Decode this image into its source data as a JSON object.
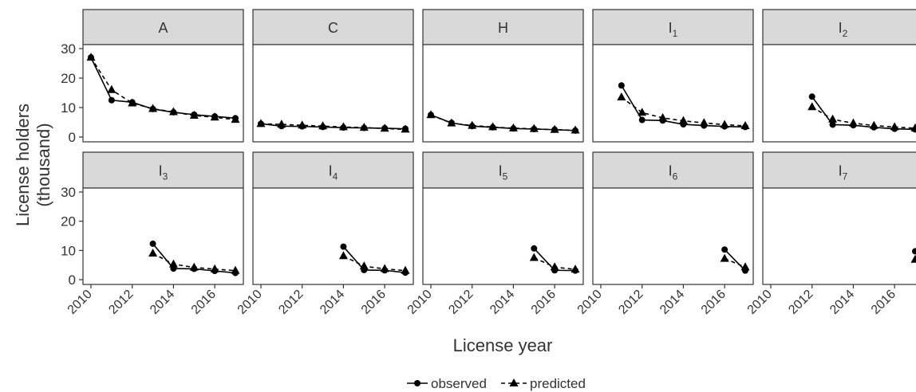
{
  "chart_data": {
    "type": "line",
    "facets": [
      "A",
      "C",
      "H",
      "I1",
      "I2",
      "I3",
      "I4",
      "I5",
      "I6",
      "I7"
    ],
    "facet_labels": [
      {
        "base": "A",
        "sub": ""
      },
      {
        "base": "C",
        "sub": ""
      },
      {
        "base": "H",
        "sub": ""
      },
      {
        "base": "I",
        "sub": "1"
      },
      {
        "base": "I",
        "sub": "2"
      },
      {
        "base": "I",
        "sub": "3"
      },
      {
        "base": "I",
        "sub": "4"
      },
      {
        "base": "I",
        "sub": "5"
      },
      {
        "base": "I",
        "sub": "6"
      },
      {
        "base": "I",
        "sub": "7"
      }
    ],
    "xlabel": "License year",
    "ylabel_lines": [
      "License holders",
      "(thousand)"
    ],
    "xlim": [
      2010,
      2017
    ],
    "ylim": [
      0,
      30
    ],
    "x_ticks": [
      "2010",
      "2012",
      "2014",
      "2016"
    ],
    "y_ticks": [
      "0",
      "10",
      "20",
      "30"
    ],
    "grid": false,
    "legend": {
      "position": "bottom",
      "entries": [
        "observed",
        "predicted"
      ]
    },
    "series": [
      {
        "name": "observed",
        "panels": [
          {
            "x": [
              2010,
              2011,
              2012,
              2013,
              2014,
              2015,
              2016,
              2017
            ],
            "y": [
              27.0,
              12.5,
              11.8,
              9.5,
              8.4,
              7.6,
              7.0,
              6.4
            ]
          },
          {
            "x": [
              2010,
              2011,
              2012,
              2013,
              2014,
              2015,
              2016,
              2017
            ],
            "y": [
              4.5,
              3.7,
              3.6,
              3.4,
              3.2,
              3.1,
              3.0,
              2.8
            ]
          },
          {
            "x": [
              2010,
              2011,
              2012,
              2013,
              2014,
              2015,
              2016,
              2017
            ],
            "y": [
              7.5,
              4.8,
              3.7,
              3.3,
              2.9,
              2.7,
              2.5,
              2.2
            ]
          },
          {
            "x": [
              2011,
              2012,
              2013,
              2014,
              2015,
              2016,
              2017
            ],
            "y": [
              17.5,
              5.8,
              5.6,
              4.3,
              3.9,
              3.6,
              3.4
            ]
          },
          {
            "x": [
              2012,
              2013,
              2014,
              2015,
              2016,
              2017
            ],
            "y": [
              13.7,
              4.2,
              4.0,
              3.3,
              2.8,
              2.6
            ]
          },
          {
            "x": [
              2013,
              2014,
              2015,
              2016,
              2017
            ],
            "y": [
              12.3,
              3.8,
              3.7,
              3.0,
              2.3
            ]
          },
          {
            "x": [
              2014,
              2015,
              2016,
              2017
            ],
            "y": [
              11.3,
              3.3,
              3.2,
              2.4
            ]
          },
          {
            "x": [
              2015,
              2016,
              2017
            ],
            "y": [
              10.7,
              3.2,
              3.1
            ]
          },
          {
            "x": [
              2016,
              2017
            ],
            "y": [
              10.3,
              3.1
            ]
          },
          {
            "x": [
              2017
            ],
            "y": [
              9.7
            ]
          }
        ]
      },
      {
        "name": "predicted",
        "panels": [
          {
            "x": [
              2010,
              2011,
              2012,
              2013,
              2014,
              2015,
              2016,
              2017
            ],
            "y": [
              27.0,
              16.0,
              11.5,
              9.6,
              8.5,
              7.3,
              6.7,
              5.9
            ]
          },
          {
            "x": [
              2010,
              2011,
              2012,
              2013,
              2014,
              2015,
              2016,
              2017
            ],
            "y": [
              4.5,
              4.3,
              4.0,
              3.7,
              3.4,
              3.2,
              2.9,
              2.6
            ]
          },
          {
            "x": [
              2010,
              2011,
              2012,
              2013,
              2014,
              2015,
              2016,
              2017
            ],
            "y": [
              7.5,
              4.7,
              3.9,
              3.4,
              3.0,
              2.8,
              2.5,
              2.3
            ]
          },
          {
            "x": [
              2011,
              2012,
              2013,
              2014,
              2015,
              2016,
              2017
            ],
            "y": [
              13.5,
              8.3,
              6.5,
              5.5,
              4.8,
              4.2,
              3.8
            ]
          },
          {
            "x": [
              2012,
              2013,
              2014,
              2015,
              2016,
              2017
            ],
            "y": [
              10.2,
              6.0,
              4.7,
              3.9,
              3.4,
              3.0
            ]
          },
          {
            "x": [
              2013,
              2014,
              2015,
              2016,
              2017
            ],
            "y": [
              9.0,
              5.3,
              4.2,
              3.6,
              3.1
            ]
          },
          {
            "x": [
              2014,
              2015,
              2016,
              2017
            ],
            "y": [
              8.1,
              4.6,
              3.7,
              3.1
            ]
          },
          {
            "x": [
              2015,
              2016,
              2017
            ],
            "y": [
              7.5,
              4.3,
              3.5
            ]
          },
          {
            "x": [
              2016,
              2017
            ],
            "y": [
              7.2,
              4.3
            ]
          },
          {
            "x": [
              2017
            ],
            "y": [
              6.9
            ]
          }
        ]
      }
    ]
  }
}
